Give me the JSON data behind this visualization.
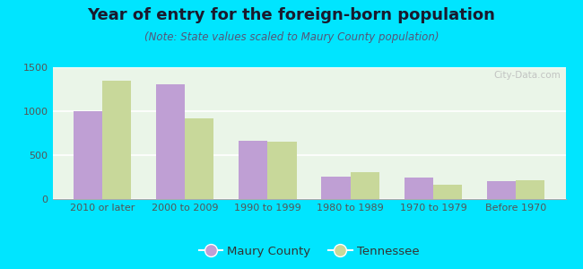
{
  "title": "Year of entry for the foreign-born population",
  "subtitle": "(Note: State values scaled to Maury County population)",
  "categories": [
    "2010 or later",
    "2000 to 2009",
    "1990 to 1999",
    "1980 to 1989",
    "1970 to 1979",
    "Before 1970"
  ],
  "maury_values": [
    1000,
    1310,
    660,
    255,
    240,
    200
  ],
  "tennessee_values": [
    1350,
    920,
    655,
    310,
    160,
    210
  ],
  "maury_color": "#bf9fd4",
  "tennessee_color": "#c8d89a",
  "background_outer": "#00e5ff",
  "background_inner": "#eaf5e8",
  "ylim": [
    0,
    1500
  ],
  "yticks": [
    0,
    500,
    1000,
    1500
  ],
  "bar_width": 0.35,
  "legend_maury": "Maury County",
  "legend_tennessee": "Tennessee",
  "title_fontsize": 13,
  "subtitle_fontsize": 8.5,
  "axis_label_fontsize": 8,
  "watermark": "City-Data.com"
}
